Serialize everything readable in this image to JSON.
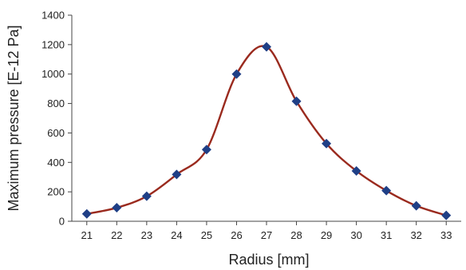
{
  "chart_data": {
    "type": "line",
    "title": "",
    "xlabel": "Radius [mm]",
    "ylabel": "Maximum pressure [E-12 Pa]",
    "x": [
      21,
      22,
      23,
      24,
      25,
      26,
      27,
      28,
      29,
      30,
      31,
      32,
      33
    ],
    "series": [
      {
        "values": [
          50,
          92,
          170,
          318,
          487,
          1000,
          1185,
          815,
          528,
          342,
          208,
          105,
          40
        ],
        "color": "#9a2a1e",
        "marker": "diamond",
        "marker_color": "#1f3f86",
        "smooth": true
      }
    ],
    "ylim": [
      0,
      1400
    ],
    "yticks": [
      0,
      200,
      400,
      600,
      800,
      1000,
      1200,
      1400
    ],
    "xlim": [
      20.5,
      33.5
    ],
    "xticks": [
      21,
      22,
      23,
      24,
      25,
      26,
      27,
      28,
      29,
      30,
      31,
      32,
      33
    ],
    "grid": false,
    "legend": "none"
  }
}
